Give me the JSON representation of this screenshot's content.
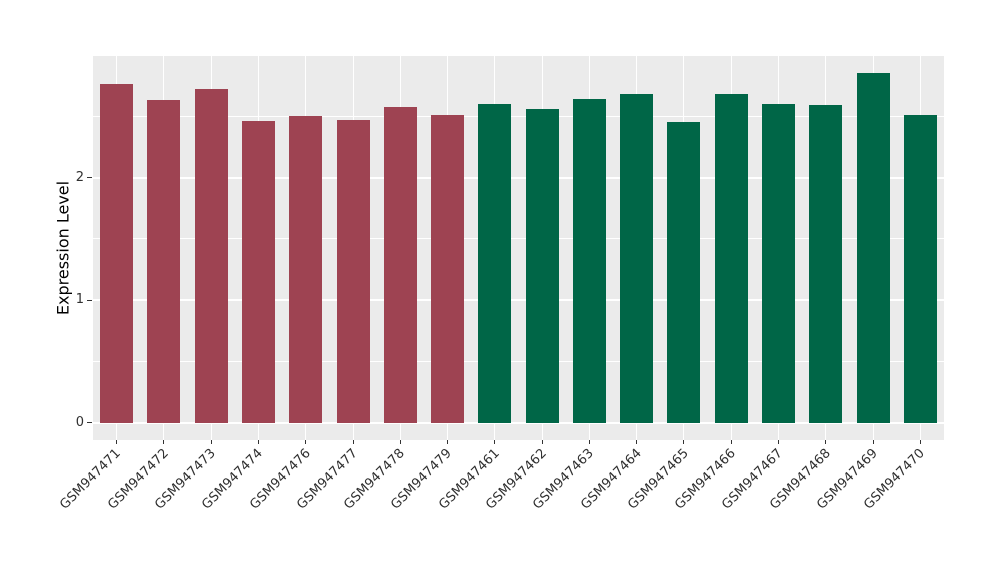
{
  "chart_data": {
    "type": "bar",
    "title": "",
    "xlabel": "",
    "ylabel": "Expression Level",
    "categories": [
      "GSM947471",
      "GSM947472",
      "GSM947473",
      "GSM947474",
      "GSM947476",
      "GSM947477",
      "GSM947478",
      "GSM947479",
      "GSM947461",
      "GSM947462",
      "GSM947463",
      "GSM947464",
      "GSM947465",
      "GSM947466",
      "GSM947467",
      "GSM947468",
      "GSM947469",
      "GSM947470"
    ],
    "values": [
      2.76,
      2.63,
      2.72,
      2.46,
      2.5,
      2.47,
      2.58,
      2.51,
      2.6,
      2.56,
      2.64,
      2.68,
      2.45,
      2.68,
      2.6,
      2.59,
      2.85,
      2.51
    ],
    "bar_colors": [
      "#9E4352",
      "#9E4352",
      "#9E4352",
      "#9E4352",
      "#9E4352",
      "#9E4352",
      "#9E4352",
      "#9E4352",
      "#006647",
      "#006647",
      "#006647",
      "#006647",
      "#006647",
      "#006647",
      "#006647",
      "#006647",
      "#006647",
      "#006647"
    ],
    "group_colors": {
      "red_group": "#9E4352",
      "green_group": "#006647"
    },
    "y_ticks": [
      0,
      1,
      2
    ],
    "y_tick_labels": [
      "0",
      "1",
      "2"
    ],
    "y_minor_ticks": [
      0.5,
      1.5,
      2.5
    ],
    "ylim": [
      -0.1425,
      2.9925
    ],
    "grid": true,
    "legend_position": "none",
    "panel_background": "#EBEBEB",
    "gridline_color": "#FFFFFF",
    "x_label_rotation_deg": 45
  }
}
